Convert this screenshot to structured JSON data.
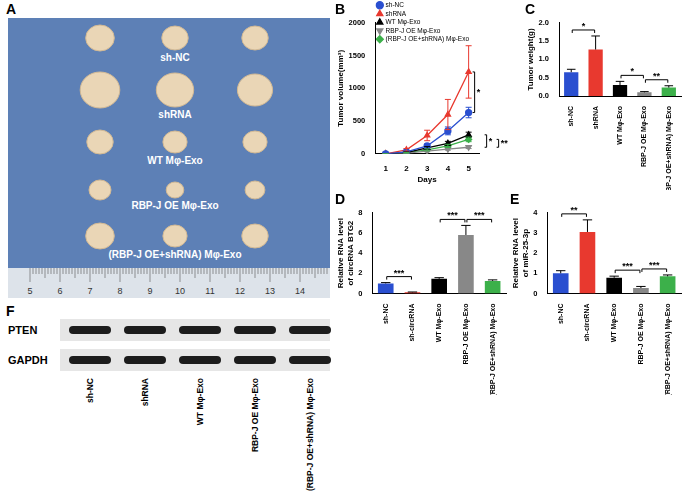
{
  "photo": {
    "panel": "A",
    "labels": [
      "sh-NC",
      "shRNA",
      "WT Mφ-Exo",
      "RBP-J OE Mφ-Exo",
      "(RBP-J OE+shRNA) Mφ-Exo"
    ],
    "ruler": [
      5,
      6,
      7,
      8,
      9,
      10,
      11,
      12,
      13,
      14
    ]
  },
  "chart_data": [
    {
      "type": "line",
      "title": "B",
      "xlabel": "Days",
      "ylabel": "Tumor volume(mm³)",
      "categories": [
        "1",
        "2",
        "3",
        "4",
        "5"
      ],
      "ylim": [
        0,
        2000
      ],
      "yticks": [
        0,
        500,
        1000,
        1500,
        2000
      ],
      "grid": false,
      "legend": "upper left",
      "series": [
        {
          "name": "sh-NC",
          "color": "#2a4fd0",
          "marker": "circle",
          "values": [
            0,
            30,
            120,
            350,
            630
          ],
          "errors": [
            5,
            10,
            30,
            60,
            80
          ]
        },
        {
          "name": "shRNA",
          "color": "#e8392f",
          "marker": "triangle",
          "values": [
            0,
            60,
            280,
            600,
            1250
          ],
          "errors": [
            5,
            20,
            80,
            230,
            400
          ]
        },
        {
          "name": "WT Mφ-Exo",
          "color": "#000000",
          "marker": "triangle",
          "values": [
            0,
            20,
            90,
            160,
            290
          ],
          "errors": [
            3,
            8,
            20,
            30,
            40
          ]
        },
        {
          "name": "RBP-J OE Mφ-Exo",
          "color": "#888888",
          "marker": "triangle_down",
          "values": [
            0,
            10,
            40,
            70,
            100
          ],
          "errors": [
            2,
            4,
            10,
            15,
            20
          ]
        },
        {
          "name": "(RBP-J OE+shRNA) Mφ-Exo",
          "color": "#3cb04a",
          "marker": "diamond",
          "values": [
            0,
            15,
            60,
            120,
            220
          ],
          "errors": [
            2,
            6,
            15,
            25,
            35
          ]
        }
      ],
      "annotations": [
        {
          "series": [
            0,
            1
          ],
          "text": "*"
        },
        {
          "series": [
            2,
            3
          ],
          "text": "*"
        },
        {
          "series": [
            3,
            4
          ],
          "text": "**"
        }
      ]
    },
    {
      "type": "bar",
      "title": "C",
      "ylabel": "Tumor weight(g)",
      "categories": [
        "sh-NC",
        "shRNA",
        "WT Mφ-Exo",
        "RBP-J OE Mφ-Exo",
        "(RBP-J OE+shRNA) Mφ-Exo"
      ],
      "values": [
        0.65,
        1.27,
        0.3,
        0.1,
        0.23
      ],
      "errors": [
        0.08,
        0.37,
        0.1,
        0.02,
        0.05
      ],
      "colors": [
        "#2a4fd0",
        "#e8392f",
        "#000000",
        "#888888",
        "#3cb04a"
      ],
      "ylim": [
        0,
        2
      ],
      "yticks": [
        {
          "value": 0,
          "label": "0.0"
        },
        0.5,
        {
          "value": 1,
          "label": "1.0"
        },
        1.5,
        {
          "value": 2,
          "label": "2.0"
        }
      ],
      "grid": false,
      "annotations": [
        {
          "bars": [
            0,
            1
          ],
          "text": "*"
        },
        {
          "bars": [
            2,
            3
          ],
          "text": "*"
        },
        {
          "bars": [
            3,
            4
          ],
          "text": "**"
        }
      ]
    },
    {
      "type": "bar",
      "title": "D",
      "ylabel": [
        "Relative RNA level",
        "of circRNA BTG2"
      ],
      "categories": [
        "sh-NC",
        "sh-circRNA",
        "WT Mφ-Exo",
        "RBP-J OE Mφ-Exo",
        "(RBP-J OE+shRNA) Mφ-Exo"
      ],
      "values": [
        1.0,
        0.12,
        1.45,
        5.8,
        1.25
      ],
      "errors": [
        0.08,
        0.03,
        0.12,
        0.95,
        0.1
      ],
      "colors": [
        "#2a4fd0",
        "#e8392f",
        "#000000",
        "#888888",
        "#3cb04a"
      ],
      "ylim": [
        0,
        8
      ],
      "yticks": [
        0,
        2,
        4,
        6,
        8
      ],
      "grid": false,
      "annotations": [
        {
          "bars": [
            0,
            1
          ],
          "text": "***"
        },
        {
          "bars": [
            2,
            3
          ],
          "text": "***"
        },
        {
          "bars": [
            3,
            4
          ],
          "text": "***"
        }
      ]
    },
    {
      "type": "bar",
      "title": "E",
      "ylabel": [
        "Relative RNA level",
        "of miR-25-3p"
      ],
      "categories": [
        "sh-NC",
        "sh-circRNA",
        "WT Mφ-Exo",
        "RBP-J OE Mφ-Exo",
        "(RBP-J OE+shRNA) Mφ-Exo"
      ],
      "values": [
        1.0,
        3.05,
        0.78,
        0.27,
        0.85
      ],
      "errors": [
        0.13,
        0.6,
        0.08,
        0.08,
        0.07
      ],
      "colors": [
        "#2a4fd0",
        "#e8392f",
        "#000000",
        "#888888",
        "#3cb04a"
      ],
      "ylim": [
        0,
        4
      ],
      "yticks": [
        0,
        1,
        2,
        3,
        4
      ],
      "grid": false,
      "annotations": [
        {
          "bars": [
            0,
            1
          ],
          "text": "**"
        },
        {
          "bars": [
            2,
            3
          ],
          "text": "***"
        },
        {
          "bars": [
            3,
            4
          ],
          "text": "***"
        }
      ]
    }
  ],
  "blot": {
    "panel": "F",
    "bands": [
      "PTEN",
      "GAPDH"
    ],
    "lanes": [
      "sh-NC",
      "shRNA",
      "WT Mφ-Exo",
      "RBP-J OE Mφ-Exo",
      "(RBP-J OE+shRNA) Mφ-Exo"
    ]
  }
}
